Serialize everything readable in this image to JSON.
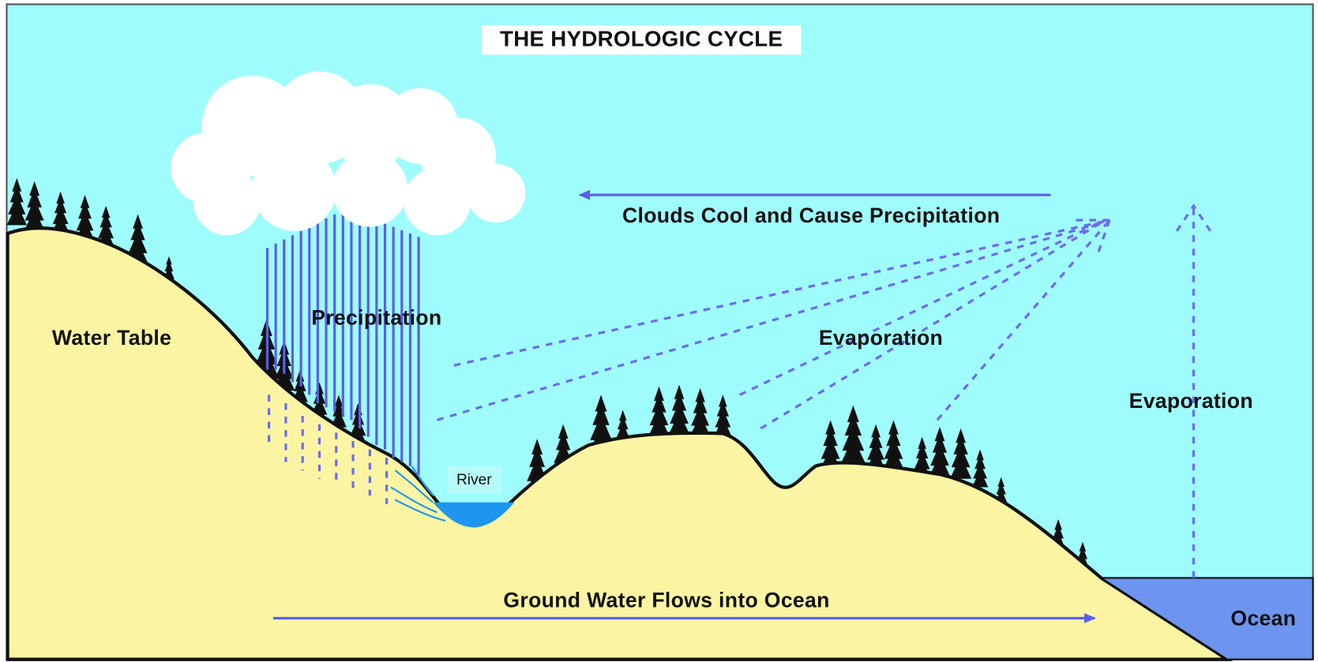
{
  "title": "THE HYDROLOGIC CYCLE",
  "labels": {
    "clouds": "Clouds Cool and Cause Precipitation",
    "precipitation": "Precipitation",
    "water_table": "Water Table",
    "evaporation_land": "Evaporation",
    "evaporation_ocean": "Evaporation",
    "river": "River",
    "ground_water": "Ground Water Flows into Ocean",
    "ocean": "Ocean"
  }
}
